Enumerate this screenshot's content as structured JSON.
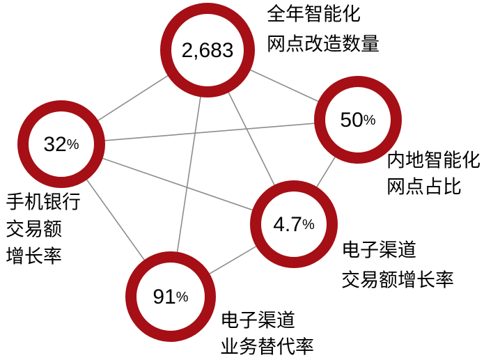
{
  "nodes": [
    {
      "value": "2,683",
      "unit": null,
      "label": [
        "全年智能化",
        "网点改造数量"
      ]
    },
    {
      "value": "50",
      "unit": "%",
      "label": [
        "内地智能化",
        "网点占比"
      ]
    },
    {
      "value": "32",
      "unit": "%",
      "label": [
        "手机银行",
        "交易额",
        "增长率"
      ]
    },
    {
      "value": "4.7",
      "unit": "%",
      "label": [
        "电子渠道",
        "交易额增长率"
      ]
    },
    {
      "value": "91",
      "unit": "%",
      "label": [
        "电子渠道",
        "业务替代率"
      ]
    }
  ]
}
